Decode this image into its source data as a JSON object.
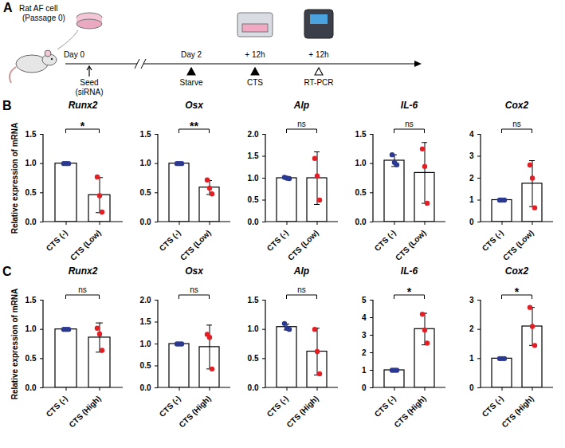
{
  "diagram": {
    "label": "A",
    "source": [
      "Rat AF cell",
      "(Passage 0)"
    ],
    "events": [
      {
        "above": "Day 0",
        "below": [
          "Seed",
          "(siRNA)"
        ],
        "marker": "arrow"
      },
      {
        "above": "Day 2",
        "below": [
          "Starve"
        ],
        "marker": "filled"
      },
      {
        "above": "+ 12h",
        "below": [
          "CTS"
        ],
        "marker": "filled"
      },
      {
        "above": "+ 12h",
        "below": [
          "RT-PCR"
        ],
        "marker": "open"
      }
    ]
  },
  "chart_data": [
    {
      "panel": "B",
      "type": "bar",
      "title": "Runx2",
      "ylabel": "Relative expression of mRNA",
      "categories": [
        "CTS (-)",
        "CTS (Low)"
      ],
      "values": [
        1.0,
        0.46
      ],
      "error": [
        0,
        0.3
      ],
      "points": [
        [
          1,
          1,
          1
        ],
        [
          0.77,
          0.45,
          0.17
        ]
      ],
      "colors": [
        "#2b3990",
        "#e31e24"
      ],
      "annotation": "*",
      "ylim": [
        0,
        1.5
      ],
      "yticks": [
        {
          "value": 0,
          "label": "0.0"
        },
        {
          "value": 0.5,
          "label": "0.5"
        },
        {
          "value": 1,
          "label": "1.0"
        },
        {
          "value": 1.5,
          "label": "1.5"
        }
      ]
    },
    {
      "panel": "B",
      "type": "bar",
      "title": "Osx",
      "categories": [
        "CTS (-)",
        "CTS (Low)"
      ],
      "values": [
        1.0,
        0.59
      ],
      "error": [
        0,
        0.12
      ],
      "points": [
        [
          1,
          1,
          1
        ],
        [
          0.72,
          0.58,
          0.48
        ]
      ],
      "colors": [
        "#2b3990",
        "#e31e24"
      ],
      "annotation": "**",
      "ylim": [
        0,
        1.5
      ],
      "yticks": [
        {
          "value": 0,
          "label": "0.0"
        },
        {
          "value": 0.5,
          "label": "0.5"
        },
        {
          "value": 1,
          "label": "1.0"
        },
        {
          "value": 1.5,
          "label": "1.5"
        }
      ]
    },
    {
      "panel": "B",
      "type": "bar",
      "title": "Alp",
      "categories": [
        "CTS (-)",
        "CTS (Low)"
      ],
      "values": [
        1.0,
        1.0
      ],
      "error": [
        0.02,
        0.6
      ],
      "points": [
        [
          1.02,
          1,
          0.99
        ],
        [
          1.45,
          1.05,
          0.5
        ]
      ],
      "colors": [
        "#2b3990",
        "#e31e24"
      ],
      "annotation": "ns",
      "ylim": [
        0,
        2
      ],
      "yticks": [
        {
          "value": 0,
          "label": "0.0"
        },
        {
          "value": 0.5,
          "label": "0.5"
        },
        {
          "value": 1,
          "label": "1.0"
        },
        {
          "value": 1.5,
          "label": "1.5"
        },
        {
          "value": 2,
          "label": "2.0"
        }
      ]
    },
    {
      "panel": "B",
      "type": "bar",
      "title": "IL-6",
      "categories": [
        "CTS (-)",
        "CTS (Low)"
      ],
      "values": [
        1.05,
        0.84
      ],
      "error": [
        0.1,
        0.52
      ],
      "points": [
        [
          1.15,
          1.02,
          0.98
        ],
        [
          1.25,
          0.95,
          0.32
        ]
      ],
      "colors": [
        "#2b3990",
        "#e31e24"
      ],
      "annotation": "ns",
      "ylim": [
        0,
        1.5
      ],
      "yticks": [
        {
          "value": 0,
          "label": "0.0"
        },
        {
          "value": 0.5,
          "label": "0.5"
        },
        {
          "value": 1,
          "label": "1.0"
        },
        {
          "value": 1.5,
          "label": "1.5"
        }
      ]
    },
    {
      "panel": "B",
      "type": "bar",
      "title": "Cox2",
      "categories": [
        "CTS (-)",
        "CTS (Low)"
      ],
      "values": [
        1.0,
        1.75
      ],
      "error": [
        0,
        1.05
      ],
      "points": [
        [
          1,
          1,
          1
        ],
        [
          2.6,
          2.0,
          0.65
        ]
      ],
      "colors": [
        "#2b3990",
        "#e31e24"
      ],
      "annotation": "ns",
      "ylim": [
        0,
        4
      ],
      "yticks": [
        0,
        1,
        2,
        3,
        4
      ]
    },
    {
      "panel": "C",
      "type": "bar",
      "title": "Runx2",
      "ylabel": "Relative expression of mRNA",
      "categories": [
        "CTS (-)",
        "CTS (High)"
      ],
      "values": [
        1.0,
        0.86
      ],
      "error": [
        0,
        0.25
      ],
      "points": [
        [
          1,
          1,
          1
        ],
        [
          1.02,
          0.92,
          0.64
        ]
      ],
      "colors": [
        "#2b3990",
        "#e31e24"
      ],
      "annotation": "ns",
      "ylim": [
        0,
        1.5
      ],
      "yticks": [
        {
          "value": 0,
          "label": "0.0"
        },
        {
          "value": 0.5,
          "label": "0.5"
        },
        {
          "value": 1,
          "label": "1.0"
        },
        {
          "value": 1.5,
          "label": "1.5"
        }
      ]
    },
    {
      "panel": "C",
      "type": "bar",
      "title": "Osx",
      "categories": [
        "CTS (-)",
        "CTS (High)"
      ],
      "values": [
        1.0,
        0.93
      ],
      "error": [
        0,
        0.5
      ],
      "points": [
        [
          1,
          1,
          1
        ],
        [
          1.22,
          1.15,
          0.43
        ]
      ],
      "colors": [
        "#2b3990",
        "#e31e24"
      ],
      "annotation": "ns",
      "ylim": [
        0,
        2
      ],
      "yticks": [
        {
          "value": 0,
          "label": "0.0"
        },
        {
          "value": 0.5,
          "label": "0.5"
        },
        {
          "value": 1,
          "label": "1.0"
        },
        {
          "value": 1.5,
          "label": "1.5"
        },
        {
          "value": 2,
          "label": "2.0"
        }
      ]
    },
    {
      "panel": "C",
      "type": "bar",
      "title": "Alp",
      "categories": [
        "CTS (-)",
        "CTS (High)"
      ],
      "values": [
        1.04,
        0.62
      ],
      "error": [
        0.05,
        0.4
      ],
      "points": [
        [
          1.1,
          1.02,
          1.0
        ],
        [
          1.0,
          0.62,
          0.24
        ]
      ],
      "colors": [
        "#2b3990",
        "#e31e24"
      ],
      "annotation": "ns",
      "ylim": [
        0,
        1.5
      ],
      "yticks": [
        {
          "value": 0,
          "label": "0.0"
        },
        {
          "value": 0.5,
          "label": "0.5"
        },
        {
          "value": 1,
          "label": "1.0"
        },
        {
          "value": 1.5,
          "label": "1.5"
        }
      ]
    },
    {
      "panel": "C",
      "type": "bar",
      "title": "IL-6",
      "categories": [
        "CTS (-)",
        "CTS (High)"
      ],
      "values": [
        1.0,
        3.35
      ],
      "error": [
        0,
        0.9
      ],
      "points": [
        [
          1,
          1,
          1
        ],
        [
          4.2,
          3.3,
          2.55
        ]
      ],
      "colors": [
        "#2b3990",
        "#e31e24"
      ],
      "annotation": "*",
      "ylim": [
        0,
        5
      ],
      "yticks": [
        0,
        1,
        2,
        3,
        4,
        5
      ]
    },
    {
      "panel": "C",
      "type": "bar",
      "title": "Cox2",
      "categories": [
        "CTS (-)",
        "CTS (High)"
      ],
      "values": [
        1.0,
        2.1
      ],
      "error": [
        0,
        0.65
      ],
      "points": [
        [
          1,
          1,
          1
        ],
        [
          2.75,
          2.1,
          1.45
        ]
      ],
      "colors": [
        "#2b3990",
        "#e31e24"
      ],
      "annotation": "*",
      "ylim": [
        0,
        3
      ],
      "yticks": [
        0,
        1,
        2,
        3
      ]
    }
  ]
}
